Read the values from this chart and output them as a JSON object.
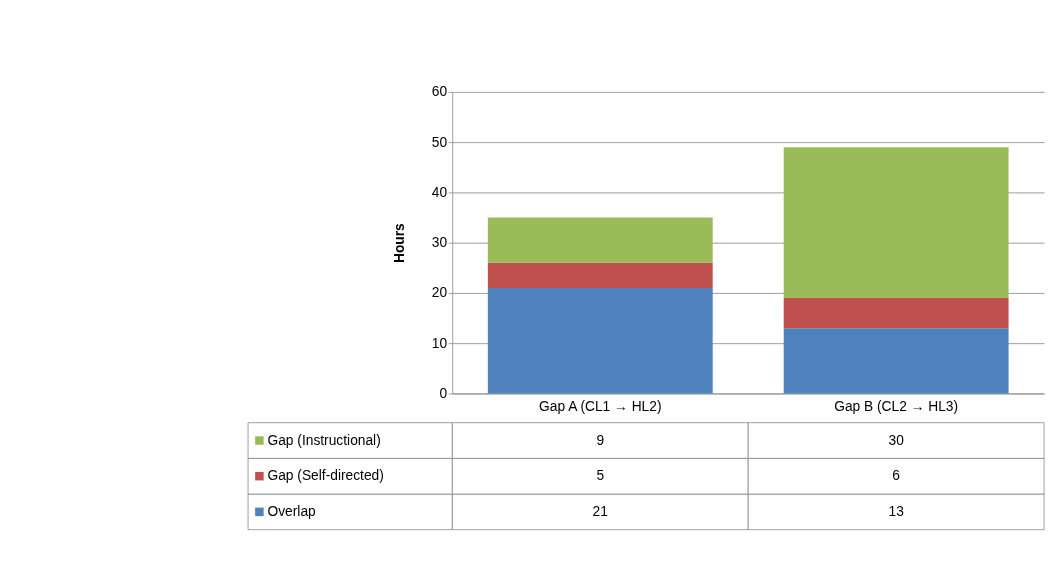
{
  "chart_data": {
    "type": "bar",
    "stacked": true,
    "ylabel": "Hours",
    "categories": [
      "Gap A (CL1 → HL2)",
      "Gap B (CL2 → HL3)"
    ],
    "series": [
      {
        "name": "Overlap",
        "color": "#4f81bd",
        "values": [
          21,
          13
        ]
      },
      {
        "name": "Gap (Self-directed)",
        "color": "#c0504d",
        "values": [
          5,
          6
        ]
      },
      {
        "name": "Gap (Instructional)",
        "color": "#9bbb59",
        "values": [
          9,
          30
        ]
      }
    ],
    "ylim": [
      0,
      60
    ],
    "yticks": [
      0,
      10,
      20,
      30,
      40,
      50,
      60
    ],
    "grid": "y",
    "legend": "bottom",
    "data_labels": true
  }
}
